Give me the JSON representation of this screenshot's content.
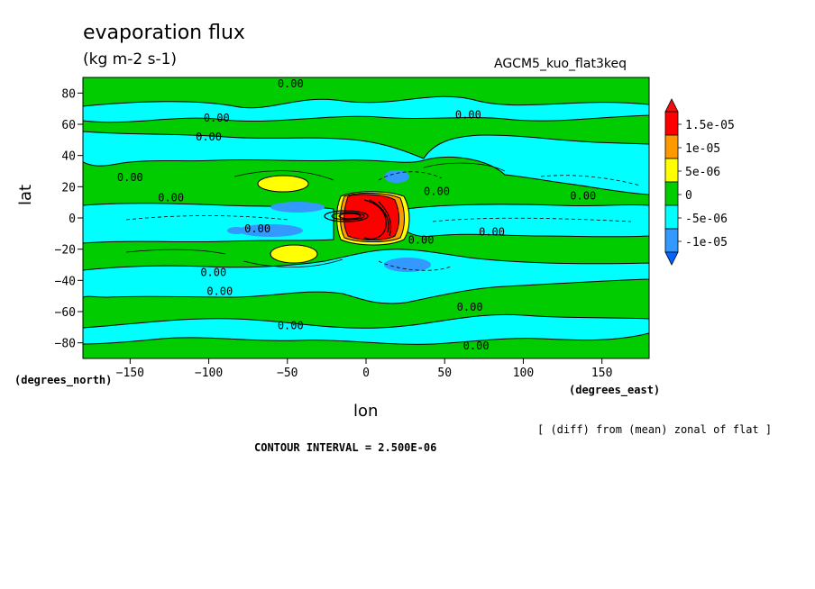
{
  "chart_data": {
    "type": "heatmap",
    "title": "evaporation flux",
    "units": "(kg m-2 s-1)",
    "dataset": "AGCM5_kuo_flat3keq",
    "xlabel": "lon",
    "ylabel": "lat",
    "x_unit_label": "(degrees_east)",
    "y_unit_label": "(degrees_north)",
    "xlim": [
      -180,
      180
    ],
    "ylim": [
      -90,
      90
    ],
    "x_ticks": [
      -150,
      -100,
      -50,
      0,
      50,
      100,
      150
    ],
    "y_ticks": [
      -80,
      -60,
      -40,
      -20,
      0,
      20,
      40,
      60,
      80
    ],
    "note": "[ (diff) from (mean) zonal of flat ]",
    "contour_interval_text": "CONTOUR INTERVAL = 2.500E-06",
    "contour_label": "0.00",
    "colorbar": {
      "labels": [
        "1.5e-05",
        "1e-05",
        "5e-06",
        "0",
        "-5e-06",
        "-1e-05"
      ],
      "colors": [
        "#ff0000",
        "#ff9900",
        "#ffff00",
        "#00cc00",
        "#00ffff",
        "#3399ff",
        "#0066ff",
        "#ee1111"
      ]
    }
  }
}
